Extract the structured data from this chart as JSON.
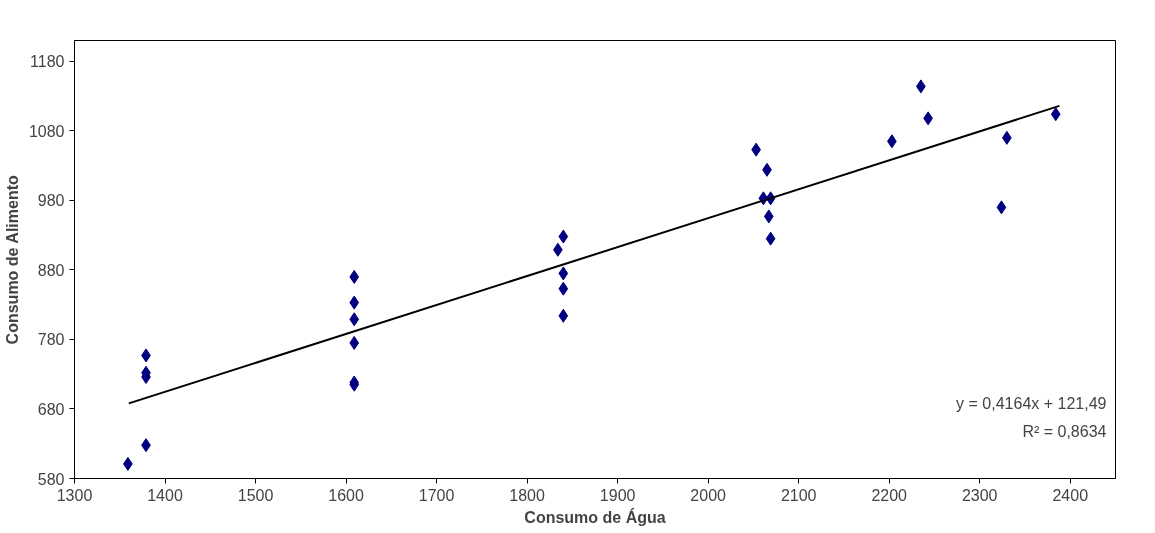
{
  "chart_data": {
    "type": "scatter",
    "xlabel": "Consumo de Água",
    "ylabel": "Consumo de Alimento",
    "xlim": [
      1300,
      2450
    ],
    "ylim": [
      580,
      1210
    ],
    "xticks": [
      1300,
      1400,
      1500,
      1600,
      1700,
      1800,
      1900,
      2000,
      2100,
      2200,
      2300,
      2400
    ],
    "yticks": [
      580,
      680,
      780,
      880,
      980,
      1080,
      1180
    ],
    "grid": false,
    "marker": "diamond",
    "series": [
      {
        "color": "#000080",
        "x": [
          1359,
          1379,
          1379,
          1379,
          1379,
          1609,
          1609,
          1609,
          1609,
          1609,
          1609,
          1840,
          1834,
          1840,
          1840,
          1840,
          2053,
          2065,
          2061,
          2069,
          2067,
          2069,
          2203,
          2235,
          2243,
          2330,
          2324,
          2384
        ],
        "values": [
          601,
          628,
          726,
          732,
          757,
          870,
          833,
          809,
          775,
          718,
          715,
          928,
          909,
          875,
          853,
          814,
          1053,
          1024,
          983,
          983,
          957,
          925,
          1065,
          1144,
          1098,
          1070,
          970,
          1104
        ]
      },
      {
        "type": "line",
        "color": "#000000",
        "marker": "none",
        "x": [
          1360,
          2388
        ],
        "values": [
          688,
          1116
        ]
      }
    ],
    "annotations": [
      "y = 0,4164x + 121,49",
      "R² = 0,8634"
    ]
  }
}
